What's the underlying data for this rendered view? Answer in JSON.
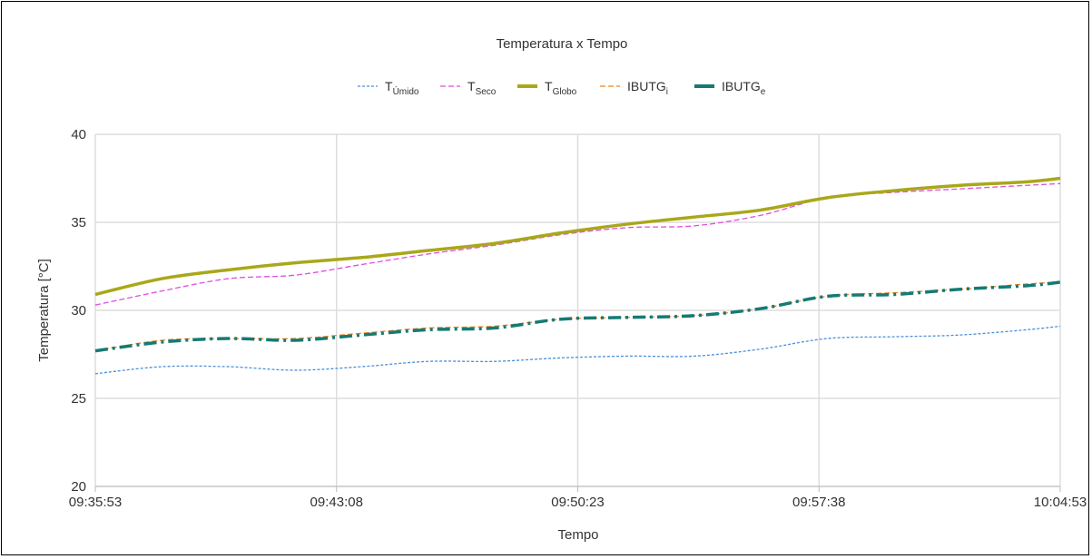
{
  "chart_data": {
    "type": "line",
    "title": "Temperatura x Tempo",
    "xlabel": "Tempo",
    "ylabel": "Temperatura [°C]",
    "ylim": [
      20,
      40
    ],
    "yticks": [
      "20",
      "25",
      "30",
      "35",
      "40"
    ],
    "x_ticks": [
      "09:35:53",
      "09:43:08",
      "09:50:23",
      "09:57:38",
      "10:04:53"
    ],
    "x_range": [
      "09:35:53",
      "10:04:53"
    ],
    "grid": true,
    "legend_placement": "top",
    "x": [
      "09:35:53",
      "09:37:53",
      "09:39:53",
      "09:41:53",
      "09:43:53",
      "09:45:53",
      "09:47:53",
      "09:49:53",
      "09:51:53",
      "09:53:53",
      "09:55:53",
      "09:57:53",
      "09:59:53",
      "10:01:53",
      "10:03:53",
      "10:04:53"
    ],
    "series": [
      {
        "name": "T",
        "sub": "Úmido",
        "color": "#4a90d9",
        "style": "dotted",
        "values": [
          26.4,
          26.8,
          26.8,
          26.6,
          26.8,
          27.1,
          27.1,
          27.3,
          27.4,
          27.4,
          27.8,
          28.4,
          28.5,
          28.6,
          28.9,
          29.1
        ]
      },
      {
        "name": "T",
        "sub": "Seco",
        "color": "#e24de0",
        "style": "dashed",
        "values": [
          30.3,
          31.1,
          31.8,
          32.0,
          32.6,
          33.2,
          33.7,
          34.3,
          34.7,
          34.8,
          35.4,
          36.4,
          36.7,
          36.9,
          37.1,
          37.2
        ]
      },
      {
        "name": "T",
        "sub": "Globo",
        "color": "#a8a81a",
        "style": "solid",
        "values": [
          30.9,
          31.8,
          32.3,
          32.7,
          33.0,
          33.4,
          33.8,
          34.4,
          34.9,
          35.3,
          35.7,
          36.4,
          36.8,
          37.1,
          37.3,
          37.5
        ]
      },
      {
        "name": "IBUTG",
        "sub": "i",
        "color": "#f0851d",
        "style": "dashed",
        "values": [
          27.7,
          28.3,
          28.4,
          28.4,
          28.7,
          29.0,
          29.1,
          29.5,
          29.6,
          29.7,
          30.1,
          30.8,
          31.0,
          31.2,
          31.5,
          31.6
        ]
      },
      {
        "name": "IBUTG",
        "sub": "e",
        "color": "#157a74",
        "style": "dashdot",
        "values": [
          27.7,
          28.2,
          28.4,
          28.3,
          28.6,
          28.9,
          29.0,
          29.5,
          29.6,
          29.7,
          30.1,
          30.8,
          30.9,
          31.2,
          31.4,
          31.6
        ]
      }
    ]
  }
}
